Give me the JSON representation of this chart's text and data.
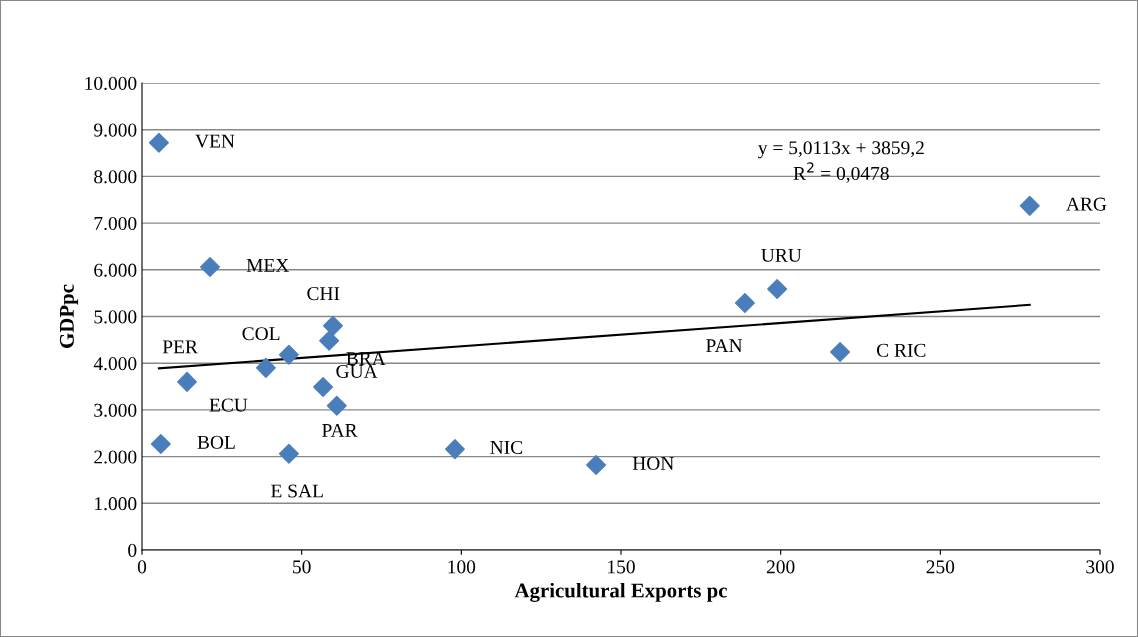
{
  "chart_data": {
    "type": "scatter",
    "xlabel": "Agricultural Exports pc",
    "ylabel": "GDPpc",
    "series": [
      {
        "color": "#4a7ebb",
        "marker": "diamond",
        "x": [
          5.3,
          21.3,
          59.8,
          58.6,
          46,
          38.8,
          14.1,
          56.7,
          61,
          5.9,
          46,
          98,
          142.2,
          188.8,
          198.9,
          218.6,
          278
        ],
        "values": [
          8720,
          6060,
          4800,
          4480,
          4180,
          3900,
          3600,
          3490,
          3090,
          2270,
          2060,
          2160,
          1820,
          5290,
          5590,
          4240,
          7370
        ]
      },
      {
        "type": "line",
        "color": "#000000",
        "marker": "none",
        "x": [
          5.3,
          278
        ],
        "values": [
          3890,
          5250
        ]
      }
    ],
    "annotations": [
      {
        "text": "VEN",
        "x": 5.3,
        "y": 8720
      },
      {
        "text": "MEX",
        "x": 21.3,
        "y": 6060
      },
      {
        "text": "CHI",
        "x": 59.8,
        "y": 4800
      },
      {
        "text": "BRA",
        "x": 58.6,
        "y": 4480
      },
      {
        "text": "COL",
        "x": 46,
        "y": 4180
      },
      {
        "text": "ECU",
        "x": 38.8,
        "y": 3900
      },
      {
        "text": "PER",
        "x": 14.1,
        "y": 3600
      },
      {
        "text": "GUA",
        "x": 56.7,
        "y": 3490
      },
      {
        "text": "PAR",
        "x": 61,
        "y": 3090
      },
      {
        "text": "BOL",
        "x": 5.9,
        "y": 2270
      },
      {
        "text": "E SAL",
        "x": 46,
        "y": 2060
      },
      {
        "text": "NIC",
        "x": 98,
        "y": 2160
      },
      {
        "text": "HON",
        "x": 142.2,
        "y": 1820
      },
      {
        "text": "PAN",
        "x": 188.8,
        "y": 5290
      },
      {
        "text": "URU",
        "x": 198.9,
        "y": 5590
      },
      {
        "text": "C RIC",
        "x": 218.6,
        "y": 4240
      },
      {
        "text": "ARG",
        "x": 278,
        "y": 7370
      },
      "y = 5,0113x + 3859,2\nR$^{2}$ = 0,0478"
    ],
    "xlim": [
      0,
      300
    ],
    "xticks": [
      0,
      50,
      100,
      150,
      200,
      250,
      300
    ],
    "ylim": [
      0,
      10000
    ],
    "yticks": [
      0,
      {
        "value": 1000,
        "label": "1.000"
      },
      {
        "value": 2000,
        "label": "2.000"
      },
      {
        "value": 3000,
        "label": "3.000"
      },
      {
        "value": 4000,
        "label": "4.000"
      },
      {
        "value": 5000,
        "label": "5.000"
      },
      {
        "value": 6000,
        "label": "6.000"
      },
      {
        "value": 7000,
        "label": "7.000"
      },
      {
        "value": 8000,
        "label": "8.000"
      },
      {
        "value": 9000,
        "label": "9.000"
      },
      {
        "value": 10000,
        "label": "10.000"
      }
    ],
    "grid": "y",
    "legend": false
  }
}
